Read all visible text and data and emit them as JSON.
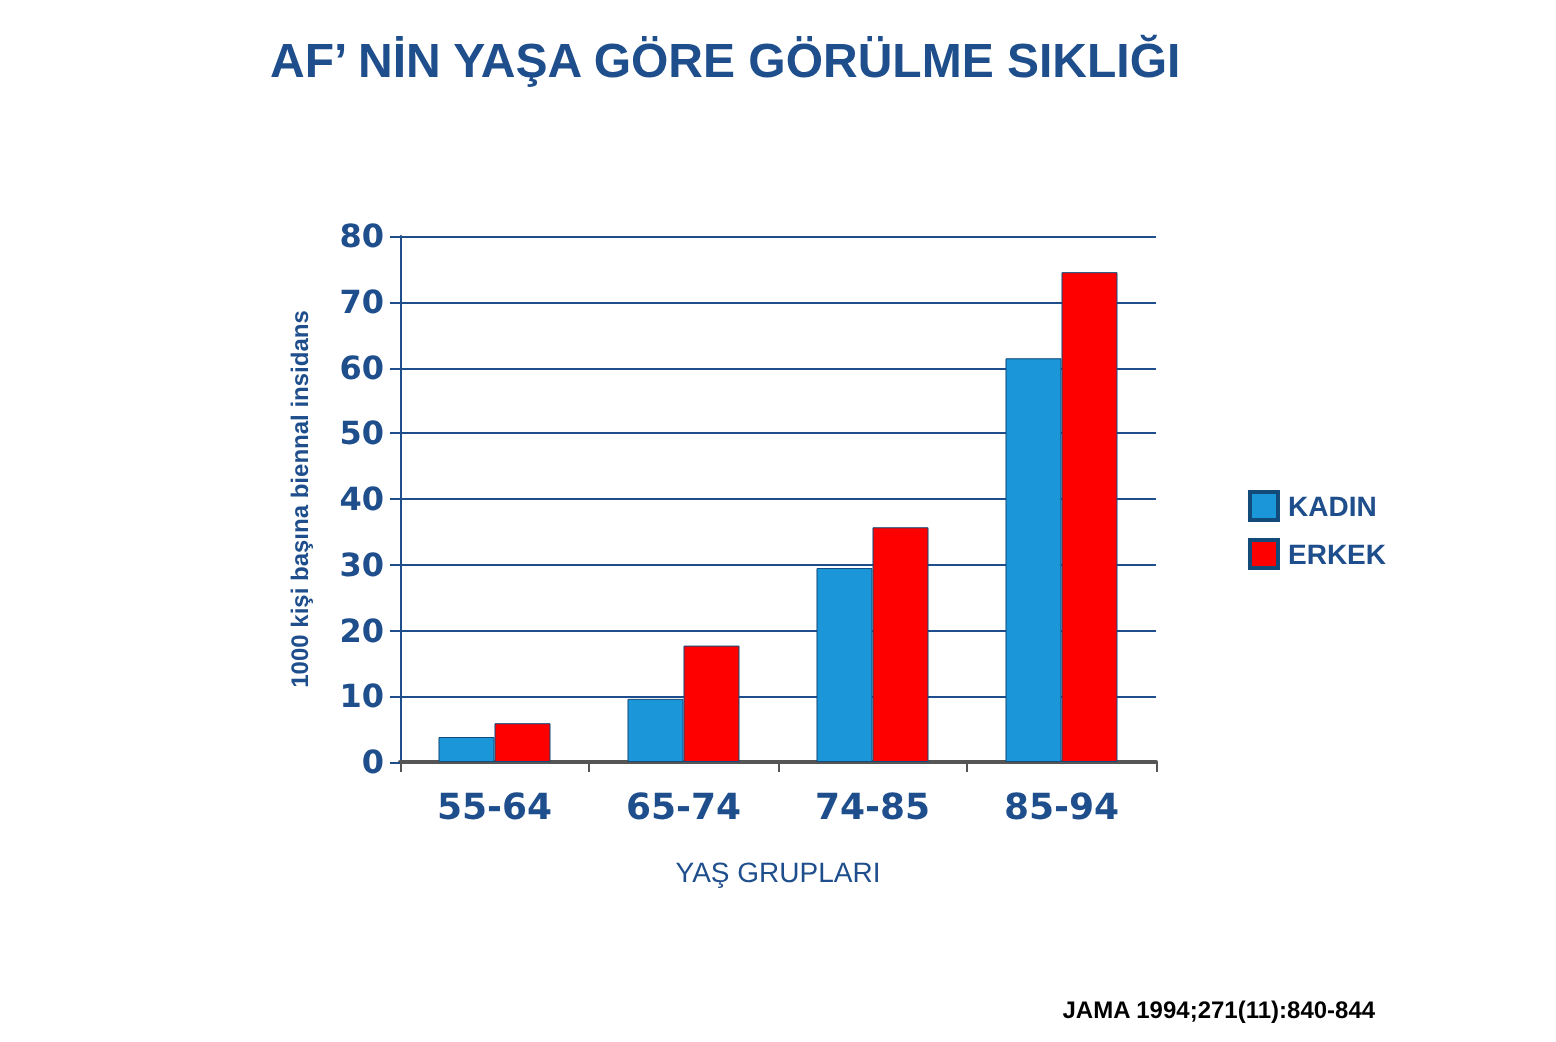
{
  "chart_data": {
    "type": "bar",
    "title": "AF’ NİN YAŞA GÖRE GÖRÜLME SIKLIĞI",
    "xlabel": "YAŞ GRUPLARI",
    "ylabel": "1000 kişi başına biennal insidans",
    "categories": [
      "55-64",
      "65-74",
      "74-85",
      "85-94"
    ],
    "series": [
      {
        "name": "KADIN",
        "color": "#1b97d9",
        "values": [
          3.8,
          9.6,
          29.5,
          61.4
        ]
      },
      {
        "name": "ERKEK",
        "color": "#ff0000",
        "values": [
          5.9,
          17.7,
          35.7,
          74.5
        ]
      }
    ],
    "ylim": [
      0,
      80
    ],
    "yticks": [
      0,
      10,
      20,
      30,
      40,
      50,
      60,
      70,
      80
    ],
    "grid": "y",
    "legend": "right",
    "annotations": [
      "JAMA 1994;271(11):840-844"
    ]
  }
}
